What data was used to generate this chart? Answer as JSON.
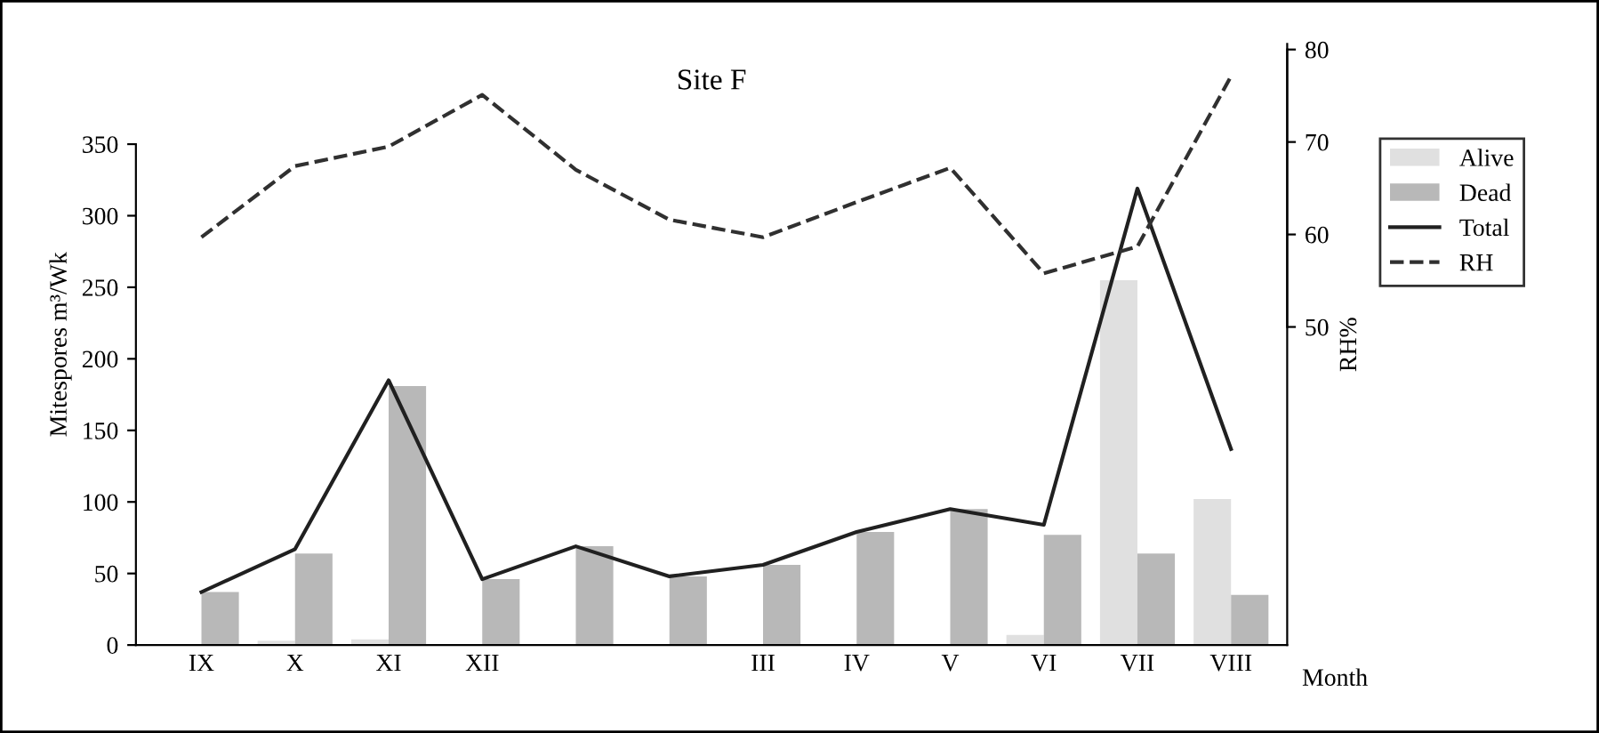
{
  "chart_data": {
    "type": "bar",
    "title": "Site F",
    "xlabel": "Month",
    "ylabel": "Mitespores m³/Wk",
    "y2label": "RH%",
    "categories": [
      "IX",
      "X",
      "XI",
      "XII",
      null,
      null,
      "III",
      "IV",
      "V",
      "VI",
      "VII",
      "VIII"
    ],
    "series": [
      {
        "name": "Alive",
        "color": "#e0e0e0",
        "values": [
          0,
          3,
          4,
          0,
          0,
          0,
          0,
          0,
          0,
          7,
          255,
          102
        ]
      },
      {
        "name": "Dead",
        "color": "#b8b8b8",
        "values": [
          37,
          64,
          181,
          46,
          69,
          48,
          56,
          79,
          95,
          77,
          64,
          35
        ]
      },
      {
        "name": "Total",
        "type": "line",
        "line_style": "solid",
        "color": "#202020",
        "values": [
          37,
          67,
          185,
          46,
          69,
          48,
          56,
          79,
          95,
          84,
          319,
          137
        ]
      },
      {
        "name": "RH",
        "type": "line",
        "line_style": "dashed",
        "axis": "y2",
        "color": "#303030",
        "values": [
          59.7,
          67.4,
          69.5,
          75.1,
          67.0,
          61.6,
          59.7,
          63.5,
          67.2,
          55.8,
          58.7,
          77.1
        ]
      }
    ],
    "ylim": [
      0,
      420
    ],
    "yticks": [
      0,
      50,
      100,
      150,
      200,
      250,
      300,
      350
    ],
    "y2lim": [
      15.6,
      80.6
    ],
    "y2ticks": [
      50,
      60,
      70,
      80
    ],
    "legend": "right",
    "grid": false
  }
}
